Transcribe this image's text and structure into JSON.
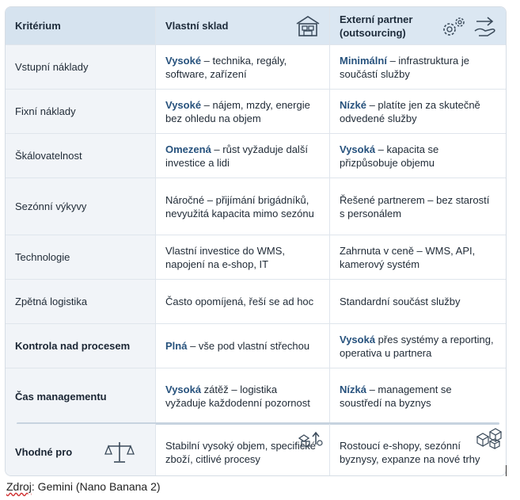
{
  "table": {
    "headers": {
      "criterion": "Kritérium",
      "own": "Vlastní sklad",
      "partner_line1": "Externí partner",
      "partner_line2": "(outsourcing)"
    },
    "rows": [
      {
        "criterion": "Vstupní náklady",
        "own_em": "Vysoké",
        "own_rest": " – technika, regály, software, zařízení",
        "partner_em": "Minimální",
        "partner_rest": " – infrastruktura je součástí služby"
      },
      {
        "criterion": "Fixní náklady",
        "own_em": "Vysoké",
        "own_rest": " – nájem, mzdy, energie bez ohledu na objem",
        "partner_em": "Nízké",
        "partner_rest": " – platíte jen za skutečně odvedené služby"
      },
      {
        "criterion": "Škálovatelnost",
        "own_em": "Omezená",
        "own_rest": " – růst vyžaduje další investice a lidi",
        "partner_em": "Vysoká",
        "partner_rest": " – kapacita se přizpůsobuje objemu"
      },
      {
        "criterion": "Sezónní výkyvy",
        "own_em": "",
        "own_rest": "Náročné – přijímání brigádníků, nevyužitá kapacita mimo sezónu",
        "partner_em": "",
        "partner_rest": "Řešené partnerem – bez starostí s personálem"
      },
      {
        "criterion": "Technologie",
        "own_em": "",
        "own_rest": "Vlastní investice do WMS, napojení na e-shop, IT",
        "partner_em": "",
        "partner_rest": "Zahrnuta v ceně – WMS, API, kamerový systém"
      },
      {
        "criterion": "Zpětná logistika",
        "own_em": "",
        "own_rest": "Často opomíjená, řeší se ad hoc",
        "partner_em": "",
        "partner_rest": "Standardní součást služby"
      },
      {
        "criterion": "Kontrola nad procesem",
        "own_em": "Plná",
        "own_rest": " – vše pod vlastní střechou",
        "partner_em": "Vysoká",
        "partner_rest": " přes systémy a reporting, operativa u partnera"
      },
      {
        "criterion": "Čas managementu",
        "own_em": "Vysoká",
        "own_rest": " zátěž – logistika vyžaduje každodenní pozornost",
        "partner_em": "Nízká",
        "partner_rest": " – management se soustředí na byznys"
      },
      {
        "criterion": "Vhodné pro",
        "own_em": "",
        "own_rest": "Stabilní vysoký objem, specifické zboží, citlivé procesy",
        "partner_em": "",
        "partner_rest": "Rostoucí e-shopy, sezónní byznysy, expanze na nové trhy"
      }
    ]
  },
  "caption": {
    "source_label": "Zdroj",
    "source_rest": ": Gemini (Nano Banana 2)"
  },
  "icons": [
    "warehouse-icon",
    "gears-icon",
    "handshake-transfer-icon",
    "scales-icon",
    "shapes-growth-icon",
    "boxes-icon"
  ],
  "colors": {
    "header_bg": "#dbe7f2",
    "emphasis": "#27527d",
    "criterion_bg": "#f1f4f8"
  }
}
